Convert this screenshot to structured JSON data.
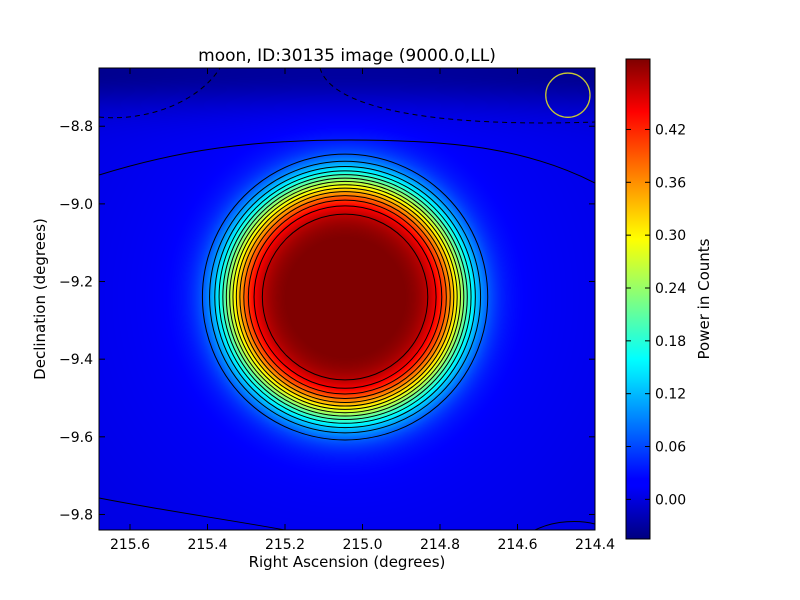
{
  "chart_data": {
    "type": "heatmap",
    "title": "moon, ID:30135 image (9000.0,LL)",
    "xlabel": "Right Ascension (degrees)",
    "ylabel": "Declination (degrees)",
    "xlim": [
      215.68,
      214.4
    ],
    "ylim": [
      -9.84,
      -8.65
    ],
    "x_ticks": [
      215.6,
      215.4,
      215.2,
      215.0,
      214.8,
      214.6,
      214.4
    ],
    "x_tick_labels": [
      "215.6",
      "215.4",
      "215.2",
      "215.0",
      "214.8",
      "214.6",
      "214.4"
    ],
    "y_ticks": [
      -8.8,
      -9.0,
      -9.2,
      -9.4,
      -9.6,
      -9.8
    ],
    "y_tick_labels": [
      "−8.8",
      "−9.0",
      "−9.2",
      "−9.4",
      "−9.6",
      "−9.8"
    ],
    "source": {
      "center_ra": 215.045,
      "center_dec": -9.24,
      "peak_power": 0.48,
      "plateau_radius_deg": 0.21,
      "edge_radius_deg": 0.38
    },
    "beam_marker": {
      "ra": 214.47,
      "dec": -8.72,
      "radius_deg": 0.057,
      "color": "#c8c832"
    },
    "contour_levels": [
      0.05,
      0.08,
      0.11,
      0.14,
      0.17,
      0.2,
      0.23,
      0.26,
      0.29,
      0.32,
      0.35,
      0.38,
      0.41,
      0.44
    ],
    "colorbar": {
      "label": "Power in Counts",
      "range": [
        -0.045,
        0.5
      ],
      "ticks": [
        0.0,
        0.06,
        0.12,
        0.18,
        0.24,
        0.3,
        0.36,
        0.42
      ],
      "tick_labels": [
        "0.00",
        "0.06",
        "0.12",
        "0.18",
        "0.24",
        "0.30",
        "0.36",
        "0.42"
      ],
      "colormap": "jet"
    }
  }
}
